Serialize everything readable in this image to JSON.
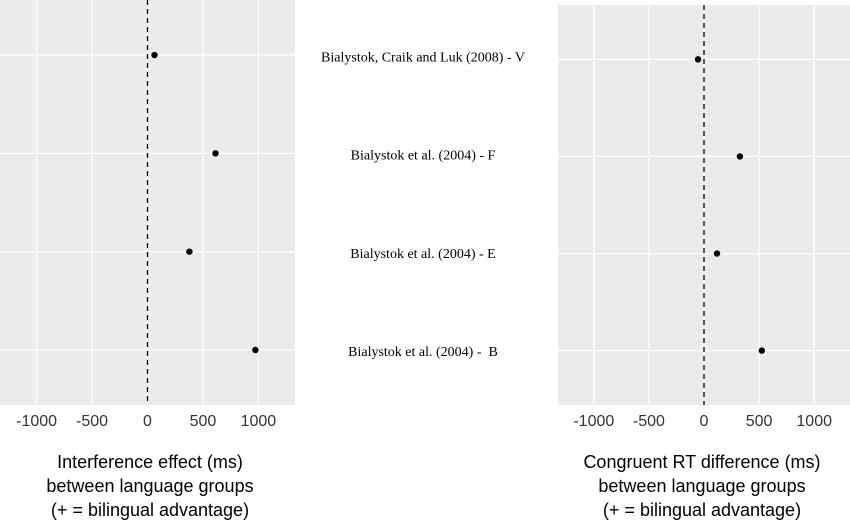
{
  "chart_data": [
    {
      "type": "scatter",
      "categories": [
        "Bialystok, Craik and Luk (2008) - V",
        "Bialystok et al. (2004) - F",
        "Bialystok et al. (2004) - E",
        "Bialystok et al. (2004) -  B"
      ],
      "values": [
        63,
        613,
        378,
        973
      ],
      "color": "#000000",
      "xlim": [
        -1330,
        1330
      ],
      "xticks": [
        -1000,
        -500,
        0,
        500,
        1000
      ],
      "reference_line": 0,
      "grid": true,
      "xlabel": [
        "Interference effect (ms)",
        "between language groups",
        "(+ = bilingual advantage)"
      ]
    },
    {
      "type": "scatter",
      "values": [
        -54,
        326,
        118,
        525
      ],
      "color": "#000000",
      "xlim": [
        -1325,
        1325
      ],
      "xticks": [
        -1000,
        -500,
        0,
        500,
        1000
      ],
      "reference_line": 0,
      "grid": true,
      "xlabel": [
        "Congruent RT difference (ms)",
        "between language groups",
        "(+ = bilingual advantage)"
      ]
    }
  ]
}
